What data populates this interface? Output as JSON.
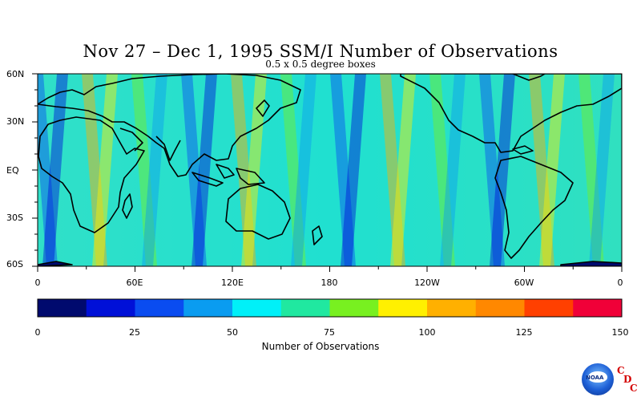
{
  "map": {
    "title": "Nov 27 – Dec 1, 1995 SSM/I Number of Observations",
    "subtitle": "0.5 x 0.5 degree boxes",
    "lat_labels": [
      "60N",
      "30N",
      "EQ",
      "30S",
      "60S"
    ],
    "lon_labels": [
      "0",
      "60E",
      "120E",
      "180",
      "120W",
      "60W",
      "0"
    ]
  },
  "colorbar": {
    "title": "Number of Observations",
    "ticks": [
      "0",
      "25",
      "50",
      "75",
      "100",
      "125",
      "150"
    ],
    "colors": [
      "#000a6e",
      "#0010d8",
      "#0a4cf0",
      "#0a9cf0",
      "#00f0f8",
      "#20e8a0",
      "#78f020",
      "#fff000",
      "#ffb000",
      "#ff8800",
      "#ff4000",
      "#f00038"
    ]
  },
  "logo": {
    "name": "noaa-logo-icon",
    "text": "NOAA",
    "letters": [
      "C",
      "D",
      "C"
    ]
  }
}
